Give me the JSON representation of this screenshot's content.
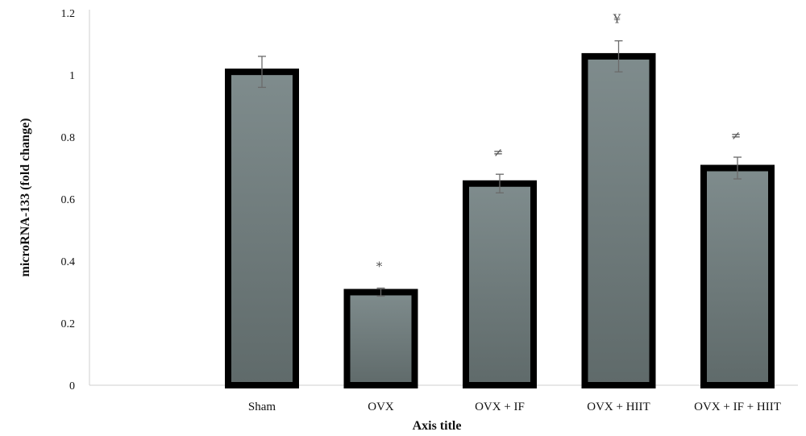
{
  "chart_data": {
    "type": "bar",
    "title": "",
    "xlabel": "Axis title",
    "ylabel": "microRNA-133 (fold change)",
    "ylim": [
      0,
      1.2
    ],
    "yticks": [
      "0",
      "0.2",
      "0.4",
      "0.6",
      "0.8",
      "1",
      "1.2"
    ],
    "grid": false,
    "legend": "none",
    "categories": [
      "Sham",
      "OVX",
      "OVX + IF",
      "OVX + HIIT",
      "OVX + IF + HIIT"
    ],
    "series": [
      {
        "values": [
          1.01,
          0.3,
          0.65,
          1.06,
          0.7
        ],
        "error": [
          0.05,
          0.013,
          0.03,
          0.05,
          0.035
        ]
      }
    ],
    "annotations": [
      "",
      "*",
      "≠",
      "¥",
      "≠"
    ],
    "colors": {
      "bar_fill_top": "#7f8c8d",
      "bar_fill_bottom": "#5f6a6a",
      "bar_border": "#000000",
      "error_bar": "#6b6b6b",
      "axis": "#cfcfcf"
    }
  }
}
